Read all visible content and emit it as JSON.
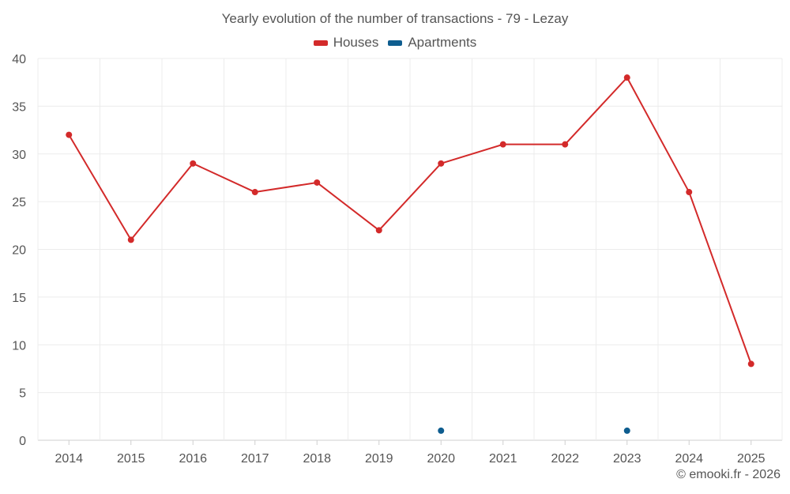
{
  "chart_data": {
    "type": "line",
    "title": "Yearly evolution of the number of transactions - 79 - Lezay",
    "categories": [
      "2014",
      "2015",
      "2016",
      "2017",
      "2018",
      "2019",
      "2020",
      "2021",
      "2022",
      "2023",
      "2024",
      "2025"
    ],
    "series": [
      {
        "name": "Houses",
        "color": "#d32a2a",
        "values": [
          32,
          21,
          29,
          26,
          27,
          22,
          29,
          31,
          31,
          38,
          26,
          8
        ]
      },
      {
        "name": "Apartments",
        "color": "#0e5d8f",
        "values": [
          null,
          null,
          null,
          null,
          null,
          null,
          1,
          null,
          null,
          1,
          null,
          null
        ]
      }
    ],
    "ylim": [
      0,
      40
    ],
    "yticks": [
      0,
      5,
      10,
      15,
      20,
      25,
      30,
      35,
      40
    ],
    "xlabel": "",
    "ylabel": "",
    "grid": true,
    "legend": "top-center"
  },
  "credit": "© emooki.fr - 2026"
}
